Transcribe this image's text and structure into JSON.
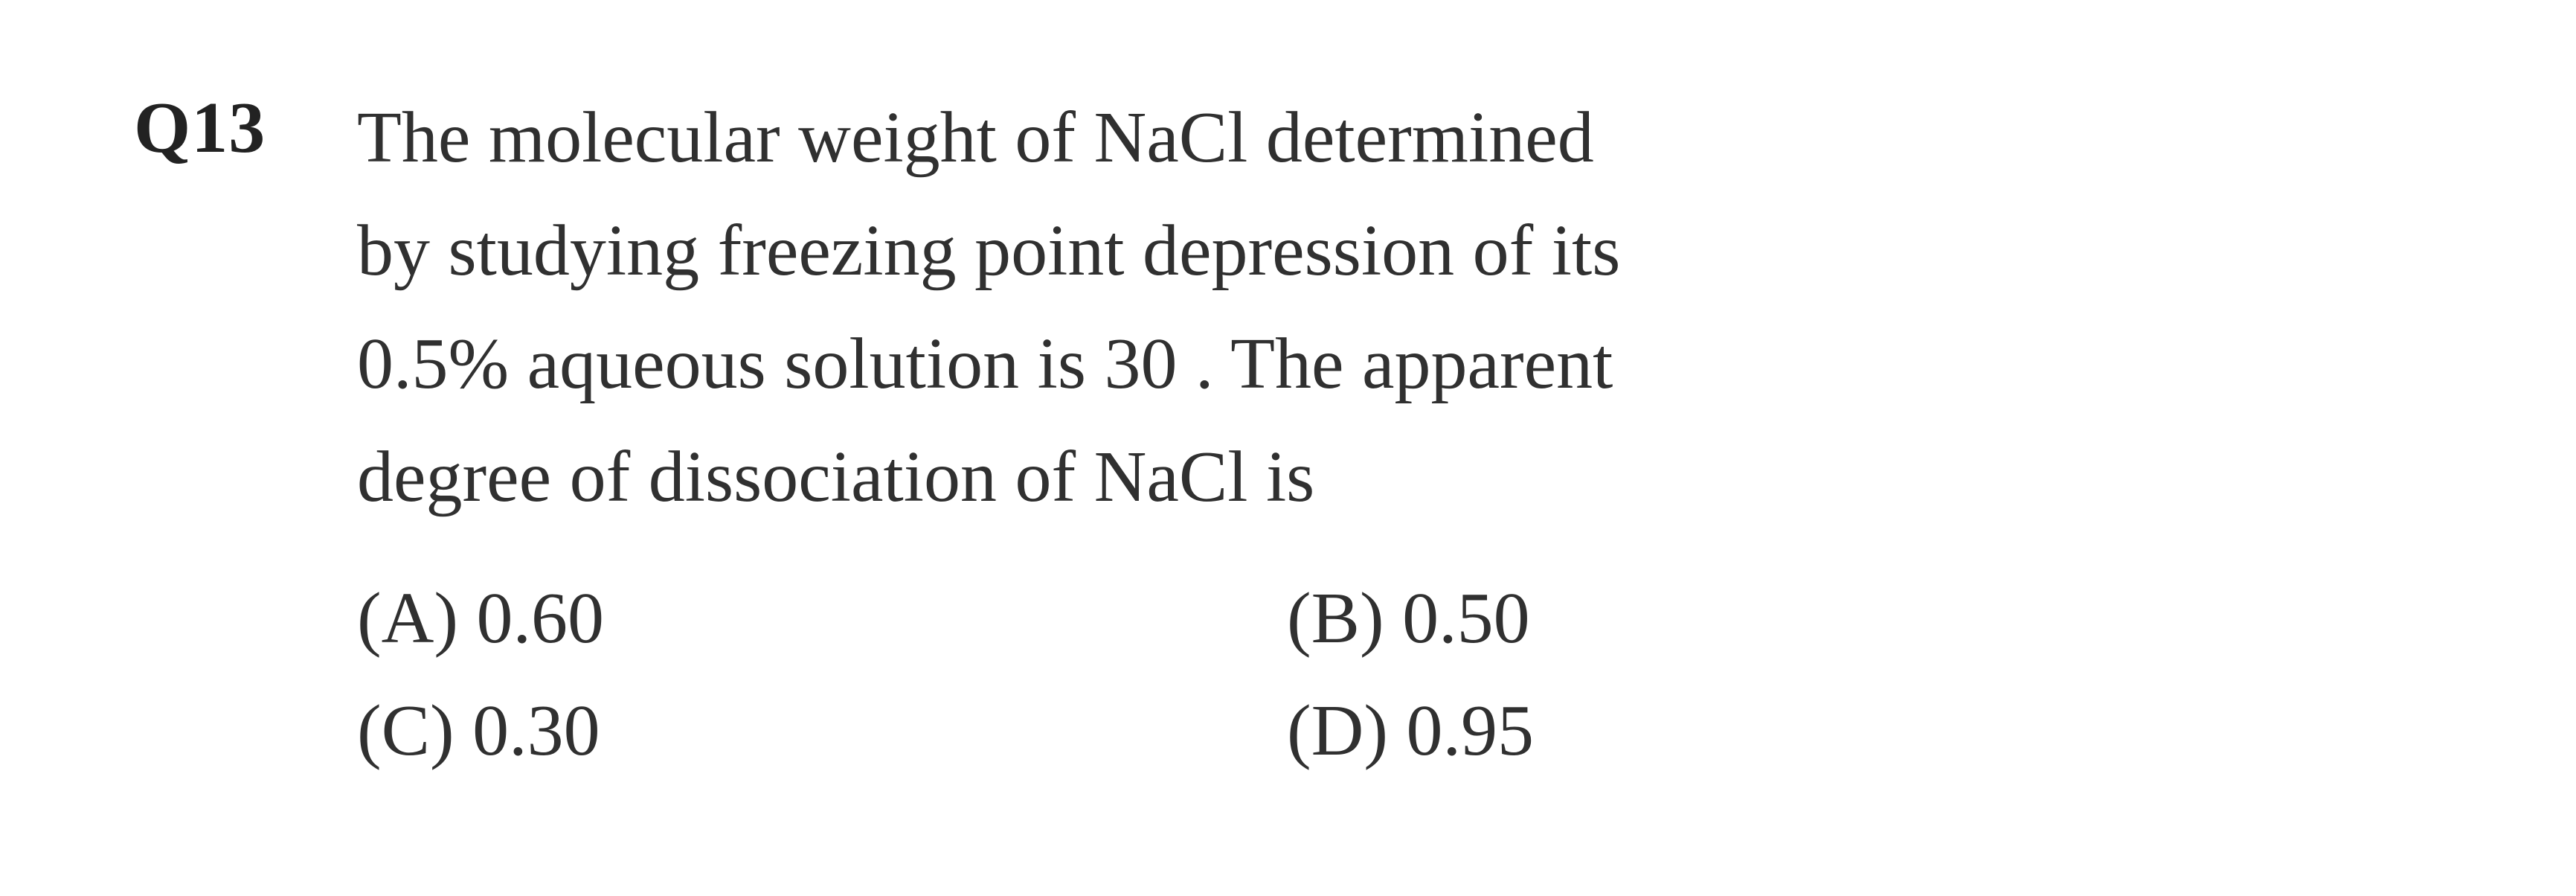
{
  "question": {
    "number": "Q13",
    "line1": "The  molecular  weight  of  NaCl  determined",
    "line2": "by  studying  freezing  point  depression  of  its",
    "line3": "0.5%  aqueous  solution  is  30 .  The  apparent",
    "line4": "degree of dissociation of NaCl is",
    "options": {
      "a": "(A) 0.60",
      "b": "(B) 0.50",
      "c": "(C) 0.30",
      "d": "(D) 0.95"
    }
  },
  "style": {
    "font_family": "Georgia, 'Times New Roman', serif",
    "font_size_pt": 98,
    "qnum_weight": "700",
    "text_color": "#303030",
    "qnum_color": "#222222",
    "background_color": "#ffffff",
    "line_height": 1.55
  }
}
